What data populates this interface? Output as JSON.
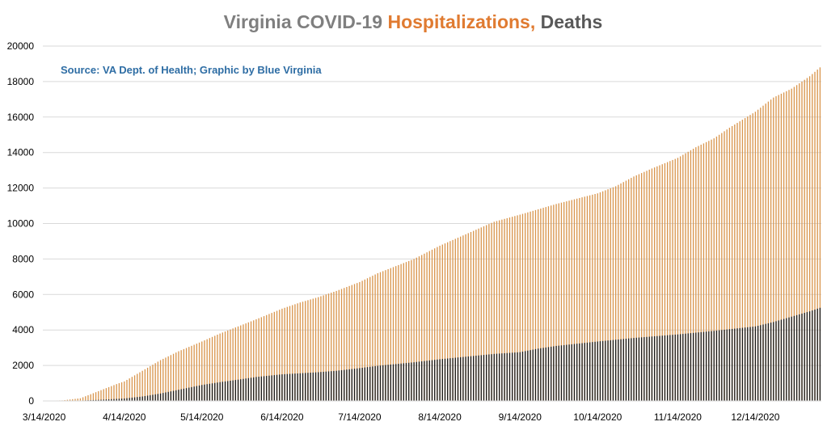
{
  "chart_data": {
    "type": "bar",
    "title_parts": [
      {
        "text": "Virginia COVID-19 ",
        "color": "#7f7f7f"
      },
      {
        "text": "Hospitalizations, ",
        "color": "#e07b31"
      },
      {
        "text": "Deaths",
        "color": "#595959"
      }
    ],
    "annotation": "Source: VA Dept. of Health; Graphic by Blue Virginia",
    "annotation_color": "#2e6da4",
    "xlabel": "",
    "ylabel": "",
    "ylim": [
      0,
      20000
    ],
    "y_ticks": [
      0,
      2000,
      4000,
      6000,
      8000,
      10000,
      12000,
      14000,
      16000,
      18000,
      20000
    ],
    "x_tick_labels": [
      "3/14/2020",
      "4/14/2020",
      "5/14/2020",
      "6/14/2020",
      "7/14/2020",
      "8/14/2020",
      "9/14/2020",
      "10/14/2020",
      "11/14/2020",
      "12/14/2020"
    ],
    "grid": true,
    "legend": "none",
    "series_colors": {
      "hospitalizations": "#d9964e",
      "deaths": "#1c1c1c"
    },
    "note": "Daily cumulative values from 3/14/2020 to ~1/8/2021; each category has a hospitalizations bar (back) and a deaths bar (front). Values sampled from the figure at key dates and filled daily.",
    "series": [
      {
        "key": "hospitalizations",
        "anchors": [
          [
            "3/14/2020",
            10
          ],
          [
            "3/21/2020",
            30
          ],
          [
            "3/28/2020",
            150
          ],
          [
            "4/4/2020",
            550
          ],
          [
            "4/11/2020",
            950
          ],
          [
            "4/14/2020",
            1100
          ],
          [
            "4/21/2020",
            1700
          ],
          [
            "4/28/2020",
            2300
          ],
          [
            "5/5/2020",
            2800
          ],
          [
            "5/14/2020",
            3350
          ],
          [
            "5/21/2020",
            3800
          ],
          [
            "5/28/2020",
            4200
          ],
          [
            "6/4/2020",
            4600
          ],
          [
            "6/14/2020",
            5200
          ],
          [
            "6/21/2020",
            5550
          ],
          [
            "6/28/2020",
            5850
          ],
          [
            "7/5/2020",
            6200
          ],
          [
            "7/14/2020",
            6700
          ],
          [
            "7/21/2020",
            7200
          ],
          [
            "7/28/2020",
            7600
          ],
          [
            "8/4/2020",
            8000
          ],
          [
            "8/14/2020",
            8750
          ],
          [
            "8/21/2020",
            9200
          ],
          [
            "8/28/2020",
            9650
          ],
          [
            "9/4/2020",
            10100
          ],
          [
            "9/14/2020",
            10500
          ],
          [
            "9/21/2020",
            10800
          ],
          [
            "9/28/2020",
            11100
          ],
          [
            "10/14/2020",
            11700
          ],
          [
            "10/21/2020",
            12100
          ],
          [
            "10/28/2020",
            12650
          ],
          [
            "11/4/2020",
            13100
          ],
          [
            "11/14/2020",
            13700
          ],
          [
            "11/21/2020",
            14300
          ],
          [
            "11/28/2020",
            14800
          ],
          [
            "12/4/2020",
            15400
          ],
          [
            "12/14/2020",
            16300
          ],
          [
            "12/21/2020",
            17100
          ],
          [
            "12/28/2020",
            17600
          ],
          [
            "1/4/2021",
            18300
          ],
          [
            "1/8/2021",
            18800
          ]
        ]
      },
      {
        "key": "deaths",
        "anchors": [
          [
            "3/14/2020",
            0
          ],
          [
            "3/28/2020",
            20
          ],
          [
            "4/4/2020",
            60
          ],
          [
            "4/14/2020",
            140
          ],
          [
            "4/21/2020",
            250
          ],
          [
            "4/28/2020",
            420
          ],
          [
            "5/5/2020",
            630
          ],
          [
            "5/14/2020",
            900
          ],
          [
            "5/21/2020",
            1060
          ],
          [
            "5/28/2020",
            1200
          ],
          [
            "6/4/2020",
            1350
          ],
          [
            "6/14/2020",
            1500
          ],
          [
            "6/21/2020",
            1560
          ],
          [
            "6/28/2020",
            1620
          ],
          [
            "7/5/2020",
            1700
          ],
          [
            "7/14/2020",
            1850
          ],
          [
            "7/21/2020",
            1980
          ],
          [
            "7/28/2020",
            2080
          ],
          [
            "8/4/2020",
            2180
          ],
          [
            "8/14/2020",
            2350
          ],
          [
            "8/21/2020",
            2450
          ],
          [
            "8/28/2020",
            2550
          ],
          [
            "9/4/2020",
            2650
          ],
          [
            "9/14/2020",
            2750
          ],
          [
            "9/21/2020",
            2950
          ],
          [
            "9/28/2020",
            3100
          ],
          [
            "10/14/2020",
            3350
          ],
          [
            "10/28/2020",
            3550
          ],
          [
            "11/14/2020",
            3750
          ],
          [
            "11/28/2020",
            3950
          ],
          [
            "12/14/2020",
            4200
          ],
          [
            "12/21/2020",
            4450
          ],
          [
            "12/28/2020",
            4750
          ],
          [
            "1/4/2021",
            5050
          ],
          [
            "1/8/2021",
            5250
          ]
        ]
      }
    ]
  }
}
